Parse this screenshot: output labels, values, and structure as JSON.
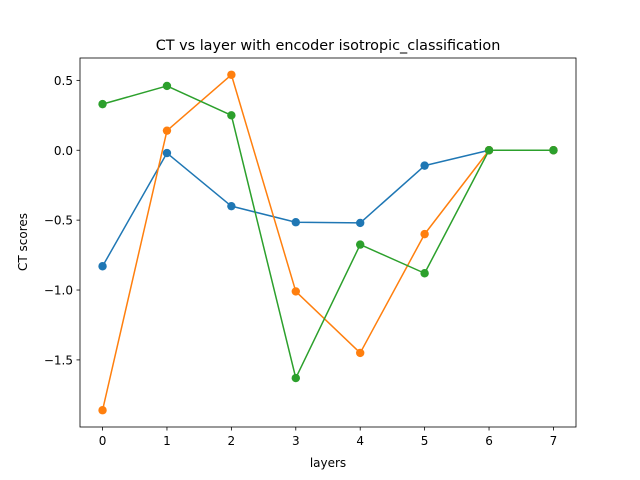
{
  "chart_data": {
    "type": "line",
    "title": "CT vs layer with encoder isotropic_classification",
    "xlabel": "layers",
    "ylabel": "CT scores",
    "x": [
      0,
      1,
      2,
      3,
      4,
      5,
      6,
      7
    ],
    "xlim": [
      -0.35,
      7.35
    ],
    "ylim": [
      -1.98,
      0.66
    ],
    "xticks": [
      0,
      1,
      2,
      3,
      4,
      5,
      6,
      7
    ],
    "yticks": [
      -1.5,
      -1.0,
      -0.5,
      0.0,
      0.5
    ],
    "ytick_labels": [
      "−1.5",
      "−1.0",
      "−0.5",
      "0.0",
      "0.5"
    ],
    "grid": false,
    "series": [
      {
        "color": "#1f77b4",
        "values": [
          -0.83,
          -0.02,
          -0.4,
          -0.515,
          -0.52,
          -0.11,
          0.0,
          0.0
        ]
      },
      {
        "color": "#ff7f0e",
        "values": [
          -1.86,
          0.14,
          0.54,
          -1.01,
          -1.45,
          -0.6,
          0.0,
          0.0
        ]
      },
      {
        "color": "#2ca02c",
        "values": [
          0.33,
          0.46,
          0.25,
          -1.63,
          -0.675,
          -0.88,
          0.0,
          0.0
        ]
      }
    ]
  }
}
